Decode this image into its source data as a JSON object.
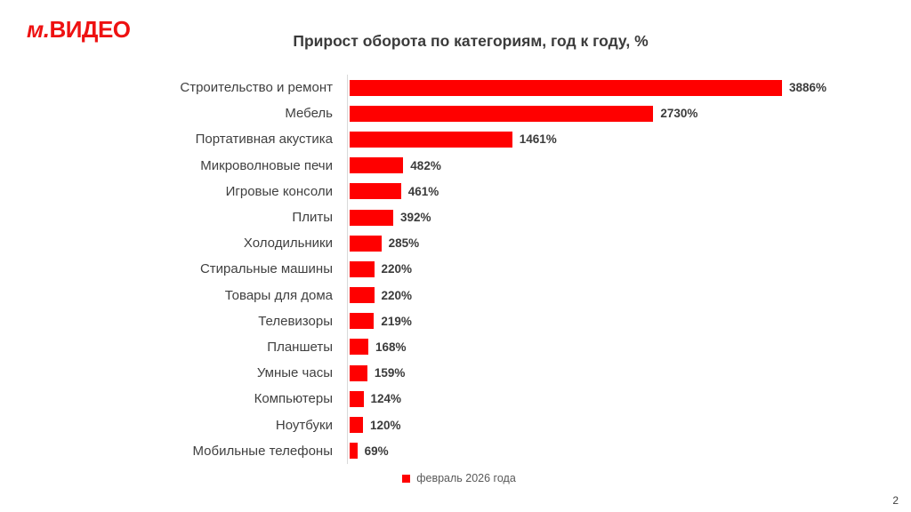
{
  "logo": {
    "script_part": "м.",
    "word_part": "ВИДЕО"
  },
  "slide": {
    "page_number": "2"
  },
  "colors": {
    "logo_red": "#ee1111",
    "bar_red": "#ff0000",
    "title_text": "#3b3b3b",
    "category_text": "#404040",
    "value_text": "#3b3b3b",
    "legend_text": "#595959",
    "axis_line": "#d9d9d9"
  },
  "chart_data": {
    "type": "bar",
    "orientation": "horizontal",
    "title": "Прирост оборота по категориям, год к году, %",
    "categories": [
      "Строительство и ремонт",
      "Мебель",
      "Портативная акустика",
      "Микроволновые печи",
      "Игровые консоли",
      "Плиты",
      "Холодильники",
      "Стиральные машины",
      "Товары для дома",
      "Телевизоры",
      "Планшеты",
      "Умные часы",
      "Компьютеры",
      "Ноутбуки",
      "Мобильные телефоны"
    ],
    "values": [
      3886,
      2730,
      1461,
      482,
      461,
      392,
      285,
      220,
      220,
      219,
      168,
      159,
      124,
      120,
      69
    ],
    "value_labels": [
      "3886%",
      "2730%",
      "1461%",
      "482%",
      "461%",
      "392%",
      "285%",
      "220%",
      "220%",
      "219%",
      "168%",
      "159%",
      "124%",
      "120%",
      "69%"
    ],
    "xlim": [
      0,
      3886
    ],
    "grid": false,
    "bar_color": "#ff0000",
    "axis_line_color": "#d9d9d9",
    "legend_position": "bottom",
    "legend_label": "февраль 2026 года",
    "legend_color": "#ff0000"
  }
}
